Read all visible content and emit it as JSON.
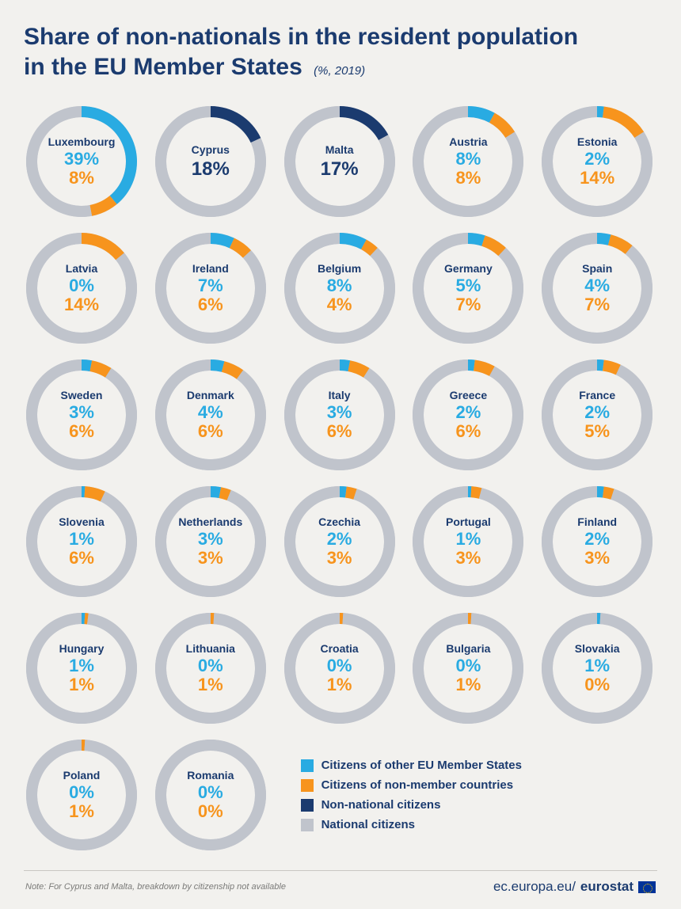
{
  "title_line1": "Share of non-nationals in the resident population",
  "title_line2": "in the EU Member States",
  "title_suffix": "(%, 2019)",
  "colors": {
    "eu_citizens": "#29abe2",
    "non_member": "#f7941d",
    "non_national": "#1b3b6f",
    "national": "#c0c4cc",
    "background": "#f2f1ee",
    "text": "#1b3b6f"
  },
  "ring": {
    "outer_radius": 70,
    "thickness": 14,
    "size": 146
  },
  "countries": [
    {
      "name": "Luxembourg",
      "eu": 39,
      "non": 8
    },
    {
      "name": "Cyprus",
      "single": 18
    },
    {
      "name": "Malta",
      "single": 17
    },
    {
      "name": "Austria",
      "eu": 8,
      "non": 8
    },
    {
      "name": "Estonia",
      "eu": 2,
      "non": 14
    },
    {
      "name": "Latvia",
      "eu": 0,
      "non": 14
    },
    {
      "name": "Ireland",
      "eu": 7,
      "non": 6
    },
    {
      "name": "Belgium",
      "eu": 8,
      "non": 4
    },
    {
      "name": "Germany",
      "eu": 5,
      "non": 7
    },
    {
      "name": "Spain",
      "eu": 4,
      "non": 7
    },
    {
      "name": "Sweden",
      "eu": 3,
      "non": 6
    },
    {
      "name": "Denmark",
      "eu": 4,
      "non": 6
    },
    {
      "name": "Italy",
      "eu": 3,
      "non": 6
    },
    {
      "name": "Greece",
      "eu": 2,
      "non": 6
    },
    {
      "name": "France",
      "eu": 2,
      "non": 5
    },
    {
      "name": "Slovenia",
      "eu": 1,
      "non": 6
    },
    {
      "name": "Netherlands",
      "eu": 3,
      "non": 3
    },
    {
      "name": "Czechia",
      "eu": 2,
      "non": 3
    },
    {
      "name": "Portugal",
      "eu": 1,
      "non": 3
    },
    {
      "name": "Finland",
      "eu": 2,
      "non": 3
    },
    {
      "name": "Hungary",
      "eu": 1,
      "non": 1
    },
    {
      "name": "Lithuania",
      "eu": 0,
      "non": 1
    },
    {
      "name": "Croatia",
      "eu": 0,
      "non": 1
    },
    {
      "name": "Bulgaria",
      "eu": 0,
      "non": 1
    },
    {
      "name": "Slovakia",
      "eu": 1,
      "non": 0
    },
    {
      "name": "Poland",
      "eu": 0,
      "non": 1
    },
    {
      "name": "Romania",
      "eu": 0,
      "non": 0
    }
  ],
  "legend": {
    "eu": "Citizens of other EU Member States",
    "non": "Citizens of non-member countries",
    "nonnat": "Non-national citizens",
    "nat": "National citizens"
  },
  "note": "Note: For Cyprus and Malta, breakdown by citizenship not available",
  "source_prefix": "ec.europa.eu/",
  "source_bold": "eurostat"
}
